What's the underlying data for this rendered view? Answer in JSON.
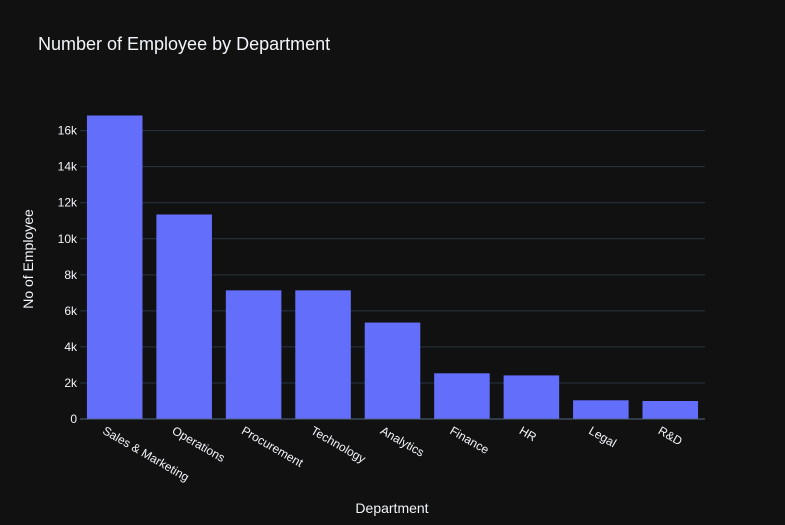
{
  "chart_data": {
    "type": "bar",
    "title": "Number of Employee by Department",
    "xlabel": "Department",
    "ylabel": "No of Employee",
    "categories": [
      "Sales & Marketing",
      "Operations",
      "Procurement",
      "Technology",
      "Analytics",
      "Finance",
      "HR",
      "Legal",
      "R&D"
    ],
    "values": [
      16840,
      11348,
      7138,
      7138,
      5352,
      2536,
      2418,
      1039,
      999
    ],
    "ylim": [
      0,
      17700
    ],
    "yticks": [
      0,
      2000,
      4000,
      6000,
      8000,
      10000,
      12000,
      14000,
      16000
    ],
    "ytick_labels": [
      "0",
      "2k",
      "4k",
      "6k",
      "8k",
      "10k",
      "12k",
      "14k",
      "16k"
    ],
    "grid": true,
    "bar_color": "#636efa",
    "background_color": "#111111",
    "grid_color": "#283442",
    "text_color": "#f2f5fa"
  }
}
